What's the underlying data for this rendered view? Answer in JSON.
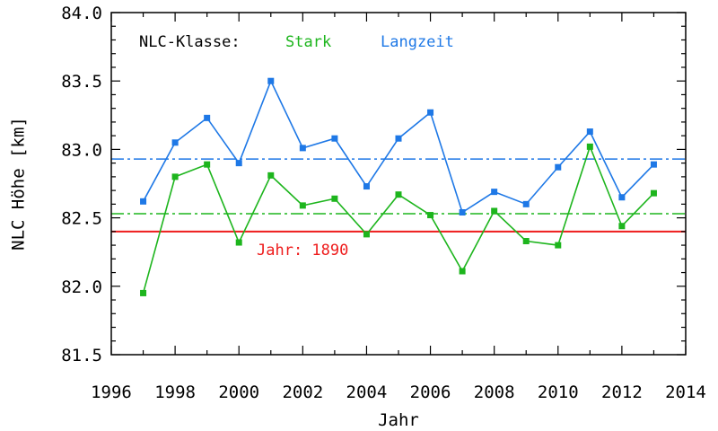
{
  "chart_data": {
    "type": "line",
    "xlabel": "Jahr",
    "ylabel": "NLC Höhe [km]",
    "xlim": [
      1996,
      2014
    ],
    "ylim": [
      81.5,
      84.0
    ],
    "xticks": [
      "1996",
      "1998",
      "2000",
      "2002",
      "2004",
      "2006",
      "2008",
      "2010",
      "2012",
      "2014"
    ],
    "yticks": [
      "81.5",
      "82.0",
      "82.5",
      "83.0",
      "83.5",
      "84.0"
    ],
    "grid": false,
    "legend": {
      "placement": "top-left",
      "prefix": "NLC-Klasse:",
      "prefix_color": "#000000"
    },
    "x": [
      1997,
      1998,
      1999,
      2000,
      2001,
      2002,
      2003,
      2004,
      2005,
      2006,
      2007,
      2008,
      2009,
      2010,
      2011,
      2012,
      2013
    ],
    "series": [
      {
        "name": "Stark",
        "color": "#1db51d",
        "values": [
          81.95,
          82.8,
          82.89,
          82.32,
          82.81,
          82.59,
          82.64,
          82.38,
          82.67,
          82.52,
          82.11,
          82.55,
          82.33,
          82.3,
          83.02,
          82.44,
          82.68
        ],
        "mean": 82.53
      },
      {
        "name": "Langzeit",
        "color": "#1e78e6",
        "values": [
          82.62,
          83.05,
          83.23,
          82.9,
          83.5,
          83.01,
          83.08,
          82.73,
          83.08,
          83.27,
          82.54,
          82.69,
          82.6,
          82.87,
          83.13,
          82.65,
          82.89
        ],
        "mean": 82.93
      }
    ],
    "reference_line": {
      "label": "Jahr: 1890",
      "value": 82.4,
      "color": "#ee1c1c"
    }
  }
}
